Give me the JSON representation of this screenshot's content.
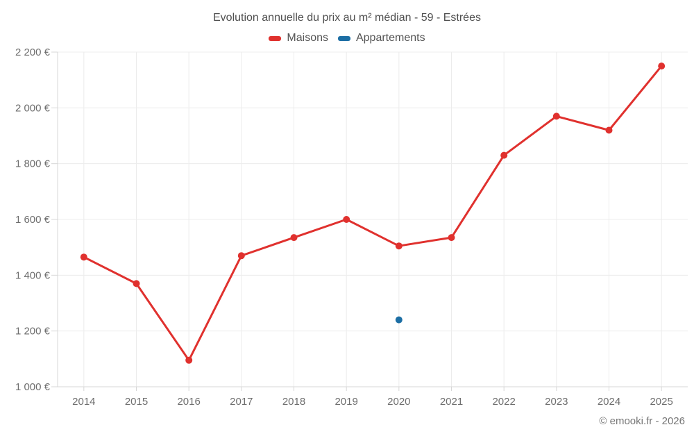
{
  "header": {
    "title": "Evolution annuelle du prix au m² médian - 59 - Estrées"
  },
  "footer": {
    "attribution": "© emooki.fr - 2026"
  },
  "chart_data": {
    "type": "line",
    "title": "Evolution annuelle du prix au m² médian - 59 - Estrées",
    "categories": [
      "2014",
      "2015",
      "2016",
      "2017",
      "2018",
      "2019",
      "2020",
      "2021",
      "2022",
      "2023",
      "2024",
      "2025"
    ],
    "series": [
      {
        "name": "Maisons",
        "color": "#e0312e",
        "values": [
          1465,
          1370,
          1095,
          1470,
          1535,
          1600,
          1505,
          1535,
          1830,
          1970,
          1920,
          2150
        ]
      },
      {
        "name": "Appartements",
        "color": "#1c6ea4",
        "values": [
          null,
          null,
          null,
          null,
          null,
          null,
          1240,
          null,
          null,
          null,
          null,
          null
        ]
      }
    ],
    "xlabel": "",
    "ylabel": "",
    "ylim": [
      1000,
      2200
    ],
    "y_ticks": [
      1000,
      1200,
      1400,
      1600,
      1800,
      2000,
      2200
    ],
    "y_tick_labels": [
      "1 000 €",
      "1 200 €",
      "1 400 €",
      "1 600 €",
      "1 800 €",
      "2 000 €",
      "2 200 €"
    ],
    "grid": true,
    "legend_position": "top",
    "marker_radius": 5,
    "line_width": 3,
    "colors": {
      "grid": "#ececec",
      "axis": "#d7d7d7",
      "tick_label": "#6e6e6e",
      "title": "#4f4f4f",
      "legend_label": "#555555"
    }
  }
}
